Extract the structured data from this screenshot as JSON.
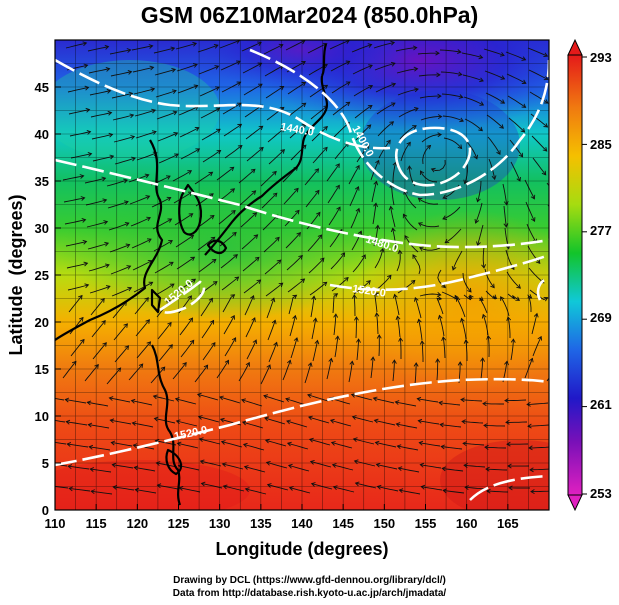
{
  "title": "GSM 06Z10Mar2024 (850.0hPa)",
  "x_axis": {
    "label": "Longitude (degrees)",
    "ticks": [
      "110",
      "115",
      "120",
      "125",
      "130",
      "135",
      "140",
      "145",
      "150",
      "155",
      "160",
      "165"
    ]
  },
  "y_axis": {
    "label": "Latitude  (degrees)",
    "ticks": [
      "0",
      "5",
      "10",
      "15",
      "20",
      "25",
      "30",
      "35",
      "40",
      "45"
    ]
  },
  "colorbar": {
    "labels": [
      "293",
      "285",
      "277",
      "269",
      "261",
      "253"
    ],
    "colors": [
      "#e51a1a",
      "#f06a10",
      "#f5b800",
      "#a6dc10",
      "#12c42a",
      "#10d0d8",
      "#1f66e6",
      "#2018c8",
      "#7a10b8",
      "#d418b8"
    ]
  },
  "contour_labels": [
    "1440.0",
    "1400.0",
    "1480.0",
    "1520.0",
    "1520.0",
    "1520.0"
  ],
  "credits": [
    "Drawing by DCL (https://www.gfd-dennou.org/library/dcl/)",
    "Data from http://database.rish.kyoto-u.ac.jp/arch/jmadata/"
  ]
}
